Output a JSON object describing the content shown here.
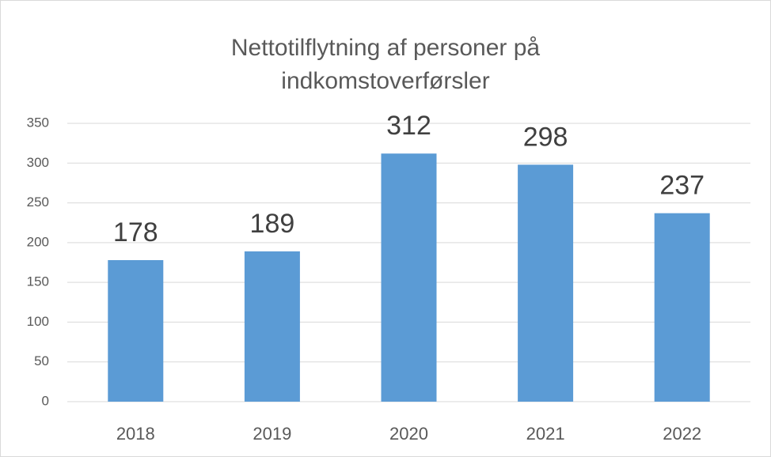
{
  "chart_data": {
    "type": "bar",
    "title": "Nettotilflytning af personer på indkomstoverførsler",
    "categories": [
      "2018",
      "2019",
      "2020",
      "2021",
      "2022"
    ],
    "values": [
      178,
      189,
      312,
      298,
      237
    ],
    "color": "#5b9bd5",
    "ylim": [
      0,
      350
    ],
    "yticks": [
      0,
      50,
      100,
      150,
      200,
      250,
      300,
      350
    ],
    "grid": true
  }
}
